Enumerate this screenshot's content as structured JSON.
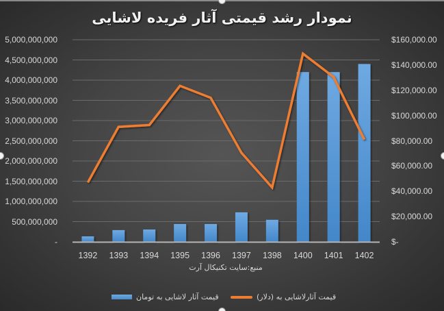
{
  "chart_data": {
    "type": "bar+line",
    "title": "نمودار رشد قیمتی آثار فریده لاشایی",
    "source": "منبع:سایت تکنیکال آرت",
    "categories": [
      "1392",
      "1393",
      "1394",
      "1395",
      "1396",
      "1397",
      "1398",
      "1400",
      "1401",
      "1402"
    ],
    "series": [
      {
        "name": "قیمت آثار لاشایی به تومان",
        "type": "bar",
        "axis": "left",
        "color": "#5B9BD5",
        "values": [
          135000000,
          290000000,
          305000000,
          440000000,
          440000000,
          730000000,
          545000000,
          4200000000,
          4200000000,
          4400000000
        ]
      },
      {
        "name": "قیمت آثارلاشایی به (دلار)",
        "type": "line",
        "axis": "right",
        "color": "#ED7D31",
        "values": [
          47000,
          91000,
          92500,
          123500,
          114000,
          70500,
          43000,
          149000,
          130500,
          81000
        ]
      }
    ],
    "y_left": {
      "ylim": [
        0,
        5000000000
      ],
      "ticks": [
        "-",
        "500,000,000",
        "1,000,000,000",
        "1,500,000,000",
        "2,000,000,000",
        "2,500,000,000",
        "3,000,000,000",
        "3,500,000,000",
        "4,000,000,000",
        "4,500,000,000",
        "5,000,000,000"
      ]
    },
    "y_right": {
      "ylim": [
        0,
        160000
      ],
      "ticks": [
        "$-",
        "$20,000.00",
        "$40,000.00",
        "$60,000.00",
        "$80,000.00",
        "$100,000.00",
        "$120,000.00",
        "$140,000.00",
        "$160,000.00"
      ]
    },
    "xlabel": "",
    "grid": true,
    "legend_position": "bottom"
  },
  "legend": {
    "bar_label": "قیمت آثار لاشایی به تومان",
    "line_label": "قیمت آثارلاشایی به (دلار)"
  }
}
